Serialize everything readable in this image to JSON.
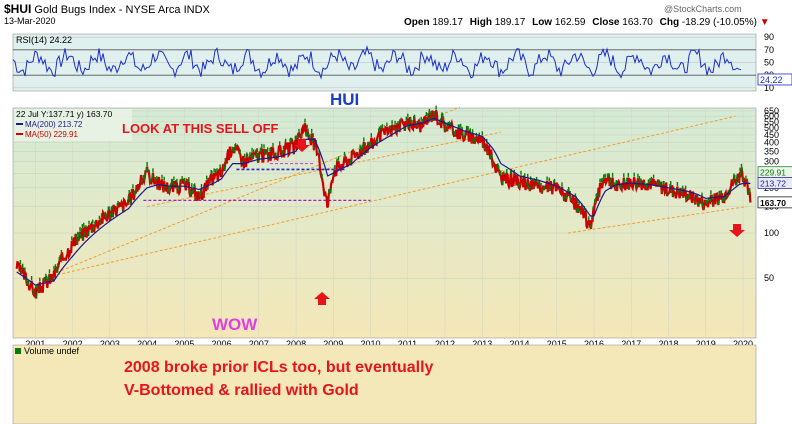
{
  "header": {
    "symbol": "$HUI",
    "name": "Gold Bugs Index - NYSE Arca",
    "exchange": "INDX",
    "date": "13-Mar-2020",
    "open_label": "Open",
    "open": "189.17",
    "high_label": "High",
    "high": "189.17",
    "low_label": "Low",
    "low": "162.59",
    "close_label": "Close",
    "close": "163.70",
    "chg_label": "Chg",
    "chg": "-18.29 (-10.05%)",
    "chg_arrow": "▼",
    "watermark": "@StockCharts.com"
  },
  "colors": {
    "price": "#cc0000",
    "price_up": "#0a7a0a",
    "ma200": "#1a1a8c",
    "ma50": "#cc0000",
    "trend": "#f0a030",
    "rsi": "#1a2ecc",
    "annot": "#e8141c",
    "pink": "#e040e0",
    "hui_text": "#1a3ec8"
  },
  "rsi_panel": {
    "label": "RSI(14) 24.22",
    "ticks": [
      "90",
      "70",
      "50",
      "30",
      "10"
    ],
    "current": "24.22"
  },
  "price_panel": {
    "legend_date": "22 Jul Y:137.71 y) 163.70",
    "ma200_label": "MA(200) 213.72",
    "ma50_label": "MA(50) 229.91",
    "ticks": [
      "650",
      "600",
      "550",
      "500",
      "450",
      "400",
      "350",
      "300",
      "250",
      "200",
      "150",
      "100",
      "50"
    ],
    "price_badges": [
      "229.91",
      "213.72",
      "163.70"
    ]
  },
  "annotations": {
    "hui": "HUI",
    "sell_off": "LOOK AT THIS SELL OFF",
    "wow": "WOW",
    "note_line1": "2008 broke prior ICLs too, but eventually",
    "note_line2": "V-Bottomed & rallied with Gold"
  },
  "volume_panel": {
    "label": "Volume undef"
  },
  "chart_data": {
    "type": "line",
    "title": "$HUI Gold Bugs Index - NYSE Arca INDX",
    "x": [
      "2000.5",
      "2001",
      "2001.5",
      "2002",
      "2002.5",
      "2003",
      "2003.5",
      "2004",
      "2004.3",
      "2004.6",
      "2005",
      "2005.4",
      "2005.8",
      "2006",
      "2006.3",
      "2006.6",
      "2007",
      "2007.5",
      "2008",
      "2008.2",
      "2008.5",
      "2008.75",
      "2008.85",
      "2009",
      "2009.5",
      "2010",
      "2010.5",
      "2011",
      "2011.4",
      "2011.7",
      "2012",
      "2012.5",
      "2013",
      "2013.3",
      "2013.5",
      "2014",
      "2014.5",
      "2015",
      "2015.5",
      "2015.9",
      "2016",
      "2016.3",
      "2016.6",
      "2017",
      "2017.5",
      "2018",
      "2018.5",
      "2018.8",
      "2019",
      "2019.5",
      "2019.9",
      "2020",
      "2020.2"
    ],
    "series": [
      {
        "name": "MA(50)",
        "values": [
          60,
          40,
          52,
          85,
          110,
          135,
          160,
          250,
          215,
          200,
          210,
          175,
          235,
          250,
          380,
          300,
          330,
          340,
          380,
          500,
          390,
          200,
          150,
          260,
          320,
          390,
          480,
          540,
          520,
          630,
          520,
          450,
          420,
          300,
          230,
          220,
          200,
          200,
          155,
          110,
          145,
          240,
          200,
          220,
          215,
          195,
          180,
          165,
          155,
          180,
          240,
          245,
          164
        ]
      },
      {
        "name": "MA(200)",
        "values": [
          55,
          45,
          48,
          70,
          95,
          120,
          145,
          200,
          210,
          205,
          205,
          195,
          215,
          230,
          290,
          290,
          310,
          320,
          350,
          420,
          420,
          290,
          240,
          250,
          290,
          370,
          440,
          520,
          540,
          580,
          540,
          480,
          440,
          360,
          290,
          240,
          225,
          205,
          175,
          130,
          130,
          190,
          210,
          215,
          210,
          200,
          190,
          180,
          170,
          175,
          210,
          214,
          214
        ]
      }
    ],
    "xlabel": "",
    "ylabel": "",
    "x_ticks": [
      "2001",
      "2002",
      "2003",
      "2004",
      "2005",
      "2006",
      "2007",
      "2008",
      "2009",
      "2010",
      "2011",
      "2012",
      "2013",
      "2014",
      "2015",
      "2016",
      "2017",
      "2018",
      "2019",
      "2020"
    ],
    "ylim": [
      20,
      680
    ],
    "scale": "log",
    "grid": true,
    "legend": "top-left"
  }
}
